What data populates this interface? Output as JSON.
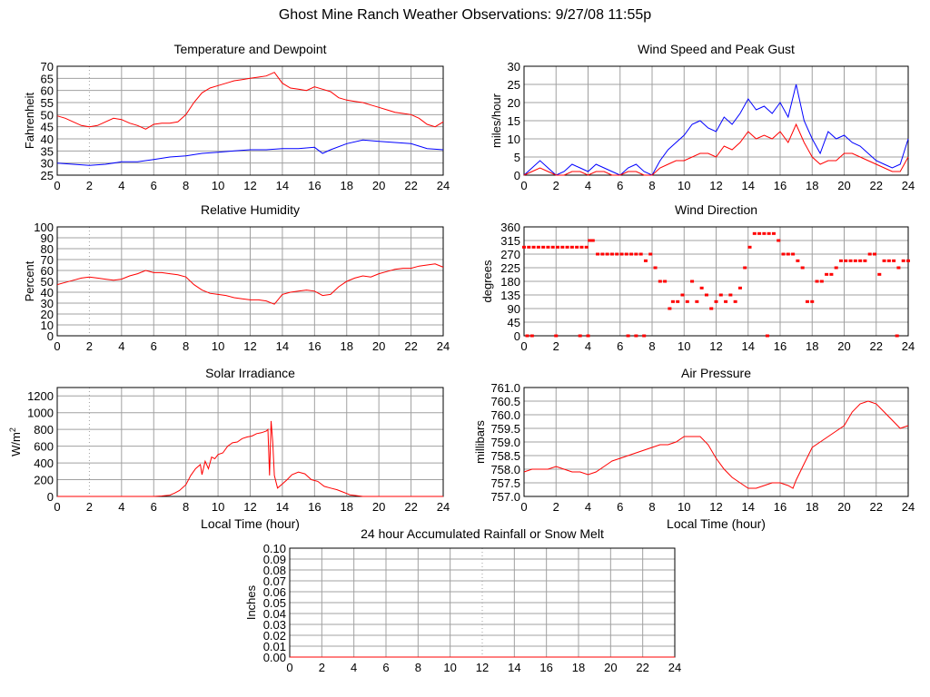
{
  "page": {
    "title": "Ghost Mine Ranch Weather Observations: 9/27/08 11:55p"
  },
  "colors": {
    "red": "#ff0000",
    "blue": "#0000ff",
    "grid": "#a0a0a0",
    "axis": "#000000"
  },
  "chart_data": [
    {
      "id": "temperature",
      "type": "line",
      "title": "Temperature and Dewpoint",
      "xlabel": "",
      "ylabel": "Fahrenheit",
      "xlim": [
        0,
        24
      ],
      "ylim": [
        25,
        70
      ],
      "xticks": [
        0,
        2,
        4,
        6,
        8,
        10,
        12,
        14,
        16,
        18,
        20,
        22,
        24
      ],
      "yticks": [
        25,
        30,
        35,
        40,
        45,
        50,
        55,
        60,
        65,
        70
      ],
      "grid": true,
      "series": [
        {
          "color": "#ff0000",
          "x": [
            0,
            0.5,
            1,
            1.5,
            2,
            2.5,
            3,
            3.5,
            4,
            4.5,
            5,
            5.5,
            6,
            6.5,
            7,
            7.5,
            8,
            8.5,
            9,
            9.5,
            10,
            10.5,
            11,
            11.5,
            12,
            12.5,
            13,
            13.5,
            14,
            14.5,
            15,
            15.5,
            16,
            16.5,
            17,
            17.5,
            18,
            18.5,
            19,
            19.5,
            20,
            20.5,
            21,
            21.5,
            22,
            22.5,
            23,
            23.5,
            24
          ],
          "y": [
            49.5,
            48.5,
            47,
            45.5,
            45,
            45.5,
            47,
            48.5,
            48,
            46.5,
            45.5,
            44,
            46,
            46.5,
            46.5,
            47,
            50,
            55,
            59,
            61,
            62,
            63,
            64,
            64.5,
            65,
            65.5,
            66,
            67.5,
            63,
            61,
            60.5,
            60,
            61.5,
            60.5,
            59.5,
            57,
            56,
            55.5,
            55,
            54,
            53,
            52,
            51,
            50.5,
            50,
            48.5,
            46,
            45,
            47
          ]
        },
        {
          "color": "#0000ff",
          "x": [
            0,
            1,
            2,
            3,
            4,
            5,
            6,
            7,
            8,
            9,
            10,
            11,
            12,
            13,
            14,
            15,
            16,
            16.5,
            17,
            18,
            19,
            20,
            21,
            22,
            23,
            24
          ],
          "y": [
            30,
            29.5,
            29,
            29.5,
            30.5,
            30.5,
            31.5,
            32.5,
            33,
            34,
            34.5,
            35,
            35.5,
            35.5,
            36,
            36,
            36.5,
            34,
            35.5,
            38,
            39.5,
            39,
            38.5,
            38,
            36,
            35.5
          ]
        }
      ]
    },
    {
      "id": "wind-speed",
      "type": "line",
      "title": "Wind Speed and Peak Gust",
      "xlabel": "",
      "ylabel": "miles/hour",
      "xlim": [
        0,
        24
      ],
      "ylim": [
        0,
        30
      ],
      "xticks": [
        0,
        2,
        4,
        6,
        8,
        10,
        12,
        14,
        16,
        18,
        20,
        22,
        24
      ],
      "yticks": [
        0,
        5,
        10,
        15,
        20,
        25,
        30
      ],
      "grid": true,
      "series": [
        {
          "color": "#0000ff",
          "x": [
            0,
            0.5,
            1,
            1.5,
            2,
            2.5,
            3,
            3.5,
            4,
            4.5,
            5,
            5.5,
            6,
            6.5,
            7,
            7.5,
            8,
            8.5,
            9,
            9.5,
            10,
            10.5,
            11,
            11.5,
            12,
            12.5,
            13,
            13.5,
            14,
            14.5,
            15,
            15.5,
            16,
            16.5,
            17,
            17.5,
            18,
            18.5,
            19,
            19.5,
            20,
            20.5,
            21,
            21.5,
            22,
            22.5,
            23,
            23.5,
            24
          ],
          "y": [
            0,
            2,
            4,
            2,
            0,
            1,
            3,
            2,
            1,
            3,
            2,
            1,
            0,
            2,
            3,
            1,
            0,
            4,
            7,
            9,
            11,
            14,
            15,
            13,
            12,
            16,
            14,
            17,
            21,
            18,
            19,
            17,
            20,
            16,
            25,
            15,
            10,
            6,
            12,
            10,
            11,
            9,
            8,
            6,
            4,
            3,
            2,
            3,
            10
          ]
        },
        {
          "color": "#ff0000",
          "x": [
            0,
            0.5,
            1,
            1.5,
            2,
            2.5,
            3,
            3.5,
            4,
            4.5,
            5,
            5.5,
            6,
            6.5,
            7,
            7.5,
            8,
            8.5,
            9,
            9.5,
            10,
            10.5,
            11,
            11.5,
            12,
            12.5,
            13,
            13.5,
            14,
            14.5,
            15,
            15.5,
            16,
            16.5,
            17,
            17.5,
            18,
            18.5,
            19,
            19.5,
            20,
            20.5,
            21,
            21.5,
            22,
            22.5,
            23,
            23.5,
            24
          ],
          "y": [
            0,
            1,
            2,
            1,
            0,
            0,
            1,
            1,
            0,
            1,
            1,
            0,
            0,
            1,
            1,
            0,
            0,
            2,
            3,
            4,
            4,
            5,
            6,
            6,
            5,
            8,
            7,
            9,
            12,
            10,
            11,
            10,
            12,
            9,
            14,
            9,
            5,
            3,
            4,
            4,
            6,
            6,
            5,
            4,
            3,
            2,
            1,
            1,
            5
          ]
        }
      ]
    },
    {
      "id": "humidity",
      "type": "line",
      "title": "Relative Humidity",
      "xlabel": "",
      "ylabel": "Percent",
      "xlim": [
        0,
        24
      ],
      "ylim": [
        0,
        100
      ],
      "xticks": [
        0,
        2,
        4,
        6,
        8,
        10,
        12,
        14,
        16,
        18,
        20,
        22,
        24
      ],
      "yticks": [
        0,
        10,
        20,
        30,
        40,
        50,
        60,
        70,
        80,
        90,
        100
      ],
      "grid": true,
      "series": [
        {
          "color": "#ff0000",
          "x": [
            0,
            0.5,
            1,
            1.5,
            2,
            2.5,
            3,
            3.5,
            4,
            4.5,
            5,
            5.5,
            6,
            6.5,
            7,
            7.5,
            8,
            8.5,
            9,
            9.5,
            10,
            10.5,
            11,
            11.5,
            12,
            12.5,
            13,
            13.5,
            14,
            14.5,
            15,
            15.5,
            16,
            16.5,
            17,
            17.5,
            18,
            18.5,
            19,
            19.5,
            20,
            20.5,
            21,
            21.5,
            22,
            22.5,
            23,
            23.5,
            24
          ],
          "y": [
            47,
            49,
            51,
            53,
            54,
            53,
            52,
            51,
            52,
            55,
            57,
            60,
            58,
            58,
            57,
            56,
            54,
            47,
            42,
            39,
            38,
            37,
            35,
            34,
            33,
            33,
            32,
            29,
            38,
            40,
            41,
            42,
            41,
            37,
            38,
            45,
            50,
            53,
            55,
            54,
            57,
            59,
            61,
            62,
            62,
            64,
            65,
            66,
            63
          ]
        }
      ]
    },
    {
      "id": "wind-direction",
      "type": "scatter",
      "title": "Wind Direction",
      "xlabel": "",
      "ylabel": "degrees",
      "xlim": [
        0,
        24
      ],
      "ylim": [
        0,
        360
      ],
      "xticks": [
        0,
        2,
        4,
        6,
        8,
        10,
        12,
        14,
        16,
        18,
        20,
        22,
        24
      ],
      "yticks": [
        0,
        45,
        90,
        135,
        180,
        225,
        270,
        315,
        360
      ],
      "grid": true,
      "series": [
        {
          "color": "#ff0000",
          "x": [
            0,
            0.3,
            0.6,
            0.9,
            1.2,
            1.5,
            1.8,
            2.1,
            2.4,
            2.7,
            3.0,
            3.3,
            3.6,
            3.9,
            4.1,
            4.3,
            4.6,
            4.9,
            5.2,
            5.5,
            5.8,
            6.1,
            6.4,
            6.7,
            7.0,
            7.3,
            7.6,
            7.9,
            8.2,
            8.5,
            8.8,
            9.1,
            9.3,
            9.6,
            9.9,
            10.2,
            10.5,
            10.8,
            11.1,
            11.4,
            11.7,
            12.0,
            12.3,
            12.6,
            12.9,
            13.2,
            13.5,
            13.8,
            14.1,
            14.4,
            14.7,
            15.0,
            15.3,
            15.6,
            15.9,
            16.2,
            16.5,
            16.8,
            17.1,
            17.4,
            17.7,
            18.0,
            18.3,
            18.6,
            18.9,
            19.2,
            19.5,
            19.8,
            20.1,
            20.4,
            20.7,
            21.0,
            21.3,
            21.6,
            21.9,
            22.2,
            22.5,
            22.8,
            23.1,
            23.4,
            23.7,
            24.0,
            0.2,
            0.5,
            2.0,
            3.5,
            4.0,
            6.5,
            7.0,
            7.5,
            15.2,
            23.3
          ],
          "y": [
            293,
            293,
            293,
            293,
            293,
            293,
            293,
            293,
            293,
            293,
            293,
            293,
            293,
            293,
            315,
            315,
            270,
            270,
            270,
            270,
            270,
            270,
            270,
            270,
            270,
            270,
            248,
            270,
            225,
            180,
            180,
            90,
            113,
            113,
            135,
            113,
            180,
            113,
            158,
            135,
            90,
            113,
            135,
            113,
            135,
            113,
            158,
            225,
            293,
            338,
            338,
            338,
            338,
            338,
            315,
            270,
            270,
            270,
            248,
            225,
            113,
            113,
            180,
            180,
            203,
            203,
            225,
            248,
            248,
            248,
            248,
            248,
            248,
            270,
            270,
            203,
            248,
            248,
            248,
            225,
            248,
            248,
            0,
            0,
            0,
            0,
            0,
            0,
            0,
            0,
            0,
            0
          ]
        }
      ]
    },
    {
      "id": "solar",
      "type": "line",
      "title": "Solar Irradiance",
      "xlabel": "Local Time (hour)",
      "ylabel": "W/m",
      "ylabel_sup": "2",
      "xlim": [
        0,
        24
      ],
      "ylim": [
        0,
        1300
      ],
      "xticks": [
        0,
        2,
        4,
        6,
        8,
        10,
        12,
        14,
        16,
        18,
        20,
        22,
        24
      ],
      "yticks": [
        0,
        200,
        400,
        600,
        800,
        1000,
        1200
      ],
      "grid": true,
      "series": [
        {
          "color": "#ff0000",
          "x": [
            0,
            6,
            6.5,
            7,
            7.3,
            7.6,
            8,
            8.3,
            8.6,
            8.9,
            9.0,
            9.2,
            9.4,
            9.6,
            9.8,
            10.0,
            10.3,
            10.6,
            10.9,
            11.2,
            11.5,
            11.8,
            12.1,
            12.4,
            12.7,
            13.0,
            13.1,
            13.2,
            13.3,
            13.4,
            13.5,
            13.7,
            14.0,
            14.3,
            14.6,
            15.0,
            15.4,
            15.8,
            16.2,
            16.6,
            17.0,
            17.4,
            17.8,
            18.2,
            18.6,
            19.0,
            24
          ],
          "y": [
            0,
            0,
            5,
            15,
            40,
            70,
            140,
            250,
            330,
            380,
            260,
            420,
            330,
            470,
            450,
            500,
            520,
            600,
            640,
            650,
            690,
            710,
            720,
            750,
            760,
            780,
            800,
            250,
            900,
            650,
            250,
            100,
            150,
            200,
            260,
            290,
            270,
            200,
            180,
            120,
            100,
            80,
            50,
            20,
            10,
            0,
            0
          ]
        }
      ]
    },
    {
      "id": "pressure",
      "type": "line",
      "title": "Air Pressure",
      "xlabel": "Local Time (hour)",
      "ylabel": "millibars",
      "xlim": [
        0,
        24
      ],
      "ylim": [
        757.0,
        761.0
      ],
      "xticks": [
        0,
        2,
        4,
        6,
        8,
        10,
        12,
        14,
        16,
        18,
        20,
        22,
        24
      ],
      "yticks": [
        "757.0",
        "757.5",
        "758.0",
        "758.5",
        "759.0",
        "759.5",
        "760.0",
        "760.5",
        "761.0"
      ],
      "grid": true,
      "series": [
        {
          "color": "#ff0000",
          "x": [
            0,
            0.5,
            1,
            1.5,
            2,
            2.5,
            3,
            3.5,
            4,
            4.5,
            5,
            5.5,
            6,
            6.5,
            7,
            7.5,
            8,
            8.5,
            9,
            9.5,
            10,
            10.5,
            11,
            11.5,
            12,
            12.5,
            13,
            13.5,
            14,
            14.5,
            15,
            15.5,
            16,
            16.5,
            16.8,
            17,
            17.5,
            18,
            18.5,
            19,
            19.5,
            20,
            20.5,
            21,
            21.5,
            22,
            22.5,
            23,
            23.5,
            24
          ],
          "y": [
            757.9,
            758.0,
            758.0,
            758.0,
            758.1,
            758.0,
            757.9,
            757.9,
            757.8,
            757.9,
            758.1,
            758.3,
            758.4,
            758.5,
            758.6,
            758.7,
            758.8,
            758.9,
            758.9,
            759.0,
            759.2,
            759.2,
            759.2,
            758.9,
            758.4,
            758.0,
            757.7,
            757.5,
            757.3,
            757.3,
            757.4,
            757.5,
            757.5,
            757.4,
            757.3,
            757.6,
            758.2,
            758.8,
            759.0,
            759.2,
            759.4,
            759.6,
            760.1,
            760.4,
            760.5,
            760.4,
            760.1,
            759.8,
            759.5,
            759.6
          ]
        }
      ]
    },
    {
      "id": "rainfall",
      "type": "line",
      "title": "24 hour Accumulated Rainfall or Snow Melt",
      "xlabel": "",
      "ylabel": "Inches",
      "xlim": [
        0,
        24
      ],
      "ylim": [
        0,
        0.1
      ],
      "xticks": [
        0,
        2,
        4,
        6,
        8,
        10,
        12,
        14,
        16,
        18,
        20,
        22,
        24
      ],
      "yticks": [
        "0.00",
        "0.01",
        "0.02",
        "0.03",
        "0.04",
        "0.05",
        "0.06",
        "0.07",
        "0.08",
        "0.09",
        "0.10"
      ],
      "grid": true,
      "series": [
        {
          "color": "#ff0000",
          "x": [
            0,
            24
          ],
          "y": [
            0,
            0
          ]
        }
      ]
    }
  ]
}
